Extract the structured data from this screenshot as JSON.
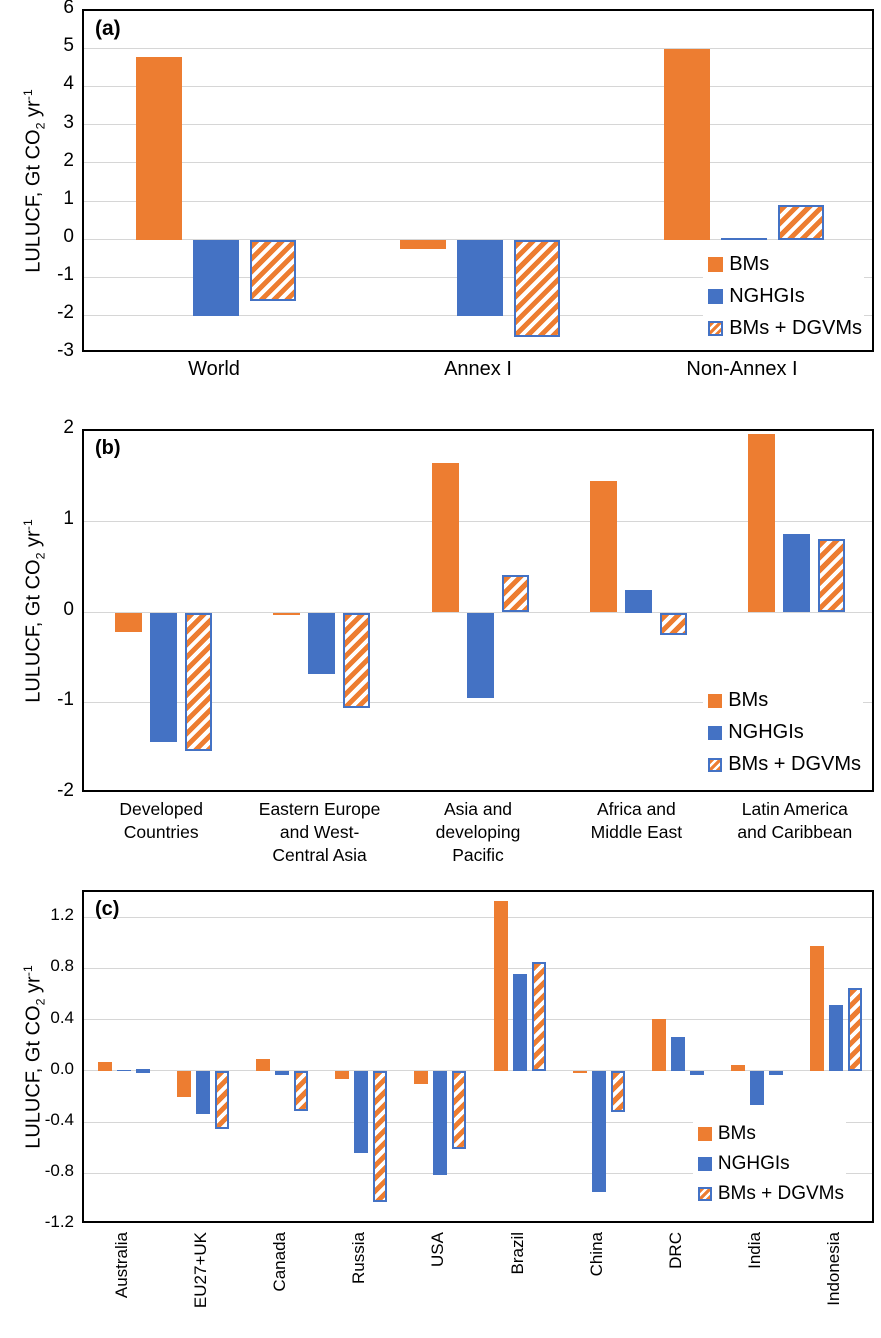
{
  "figure": {
    "ylabel_parts": {
      "prefix": "LULUCF, Gt CO",
      "sub": "2",
      "mid": " yr",
      "sup": "-1"
    },
    "colors": {
      "bms_orange": "#ED7D31",
      "nghgis_blue": "#4472C4",
      "hatch_border_blue": "#4472C4",
      "gridline_gray": "#D6D6D6",
      "axis_black": "#000000"
    }
  },
  "chart_data": [
    {
      "type": "bar",
      "panel_label": "(a)",
      "ylabel": "LULUCF, Gt CO2 yr-1",
      "xlabel": "",
      "ylim": [
        -3,
        6
      ],
      "yticks": [
        "6",
        "5",
        "4",
        "3",
        "2",
        "1",
        "0",
        "-1",
        "-2",
        "-3"
      ],
      "grid": true,
      "legend_position": "inside bottom-right",
      "categories": [
        "World",
        "Annex I",
        "Non-Annex I"
      ],
      "series": [
        {
          "name": "BMs",
          "values": [
            4.8,
            -0.25,
            5.0
          ]
        },
        {
          "name": "NGHGIs",
          "values": [
            -2.0,
            -2.0,
            0.05
          ]
        },
        {
          "name": "BMs + DGVMs",
          "values": [
            -1.6,
            -2.55,
            0.9
          ]
        }
      ]
    },
    {
      "type": "bar",
      "panel_label": "(b)",
      "ylabel": "LULUCF, Gt CO2 yr-1",
      "xlabel": "",
      "ylim": [
        -2,
        2
      ],
      "yticks": [
        "2",
        "1",
        "0",
        "-1",
        "-2"
      ],
      "grid": true,
      "legend_position": "inside bottom-right",
      "categories": [
        "Developed\nCountries",
        "Eastern Europe\nand West-\nCentral Asia",
        "Asia and\ndeveloping\nPacific",
        "Africa and\nMiddle East",
        "Latin America\nand Caribbean"
      ],
      "series": [
        {
          "name": "BMs",
          "values": [
            -0.21,
            -0.03,
            1.65,
            1.45,
            1.97
          ]
        },
        {
          "name": "NGHGIs",
          "values": [
            -1.43,
            -0.68,
            -0.94,
            0.25,
            0.86
          ]
        },
        {
          "name": "BMs + DGVMs",
          "values": [
            -1.53,
            -1.05,
            0.41,
            -0.25,
            0.81
          ]
        }
      ]
    },
    {
      "type": "bar",
      "panel_label": "(c)",
      "ylabel": "LULUCF, Gt CO2 yr-1",
      "xlabel": "",
      "ylim": [
        -1.2,
        1.4
      ],
      "yticks": [
        "1.2",
        "0.8",
        "0.4",
        "0.0",
        "-0.4",
        "-0.8",
        "-1.2"
      ],
      "grid": true,
      "legend_position": "inside bottom-right",
      "categories": [
        "Australia",
        "EU27+UK",
        "Canada",
        "Russia",
        "USA",
        "Brazil",
        "China",
        "DRC",
        "India",
        "Indonesia"
      ],
      "series": [
        {
          "name": "BMs",
          "values": [
            0.07,
            -0.2,
            0.1,
            -0.06,
            -0.1,
            1.33,
            -0.01,
            0.41,
            0.05,
            0.98
          ]
        },
        {
          "name": "NGHGIs",
          "values": [
            0.01,
            -0.33,
            -0.03,
            -0.64,
            -0.81,
            0.76,
            -0.94,
            0.27,
            -0.26,
            0.52
          ]
        },
        {
          "name": "BMs + DGVMs",
          "values": [
            0.02,
            -0.45,
            -0.31,
            -1.02,
            -0.61,
            0.85,
            -0.32,
            -0.02,
            -0.03,
            0.65
          ]
        }
      ]
    }
  ]
}
